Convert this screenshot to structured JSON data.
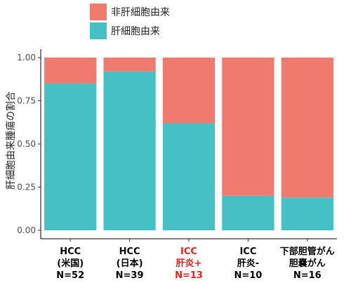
{
  "chart_data": {
    "type": "bar",
    "stacked": true,
    "ylabel": "肝細胞由来腫瘍の割合",
    "xlabel": "",
    "ylim": [
      0,
      1
    ],
    "yticks": [
      "0.00",
      "0.25",
      "0.50",
      "0.75",
      "1.00"
    ],
    "ytick_values": [
      0,
      0.25,
      0.5,
      0.75,
      1.0
    ],
    "grid": false,
    "legend_position": "top",
    "categories": [
      {
        "lines": [
          "HCC",
          "(米国)",
          "N=52"
        ],
        "color": "#000000"
      },
      {
        "lines": [
          "HCC",
          "(日本)",
          "N=39"
        ],
        "color": "#000000"
      },
      {
        "lines": [
          "ICC",
          "肝炎+",
          "N=13"
        ],
        "color": "#e8211c"
      },
      {
        "lines": [
          "ICC",
          "肝炎-",
          "N=10"
        ],
        "color": "#000000"
      },
      {
        "lines": [
          "下部胆管がん",
          "胆嚢がん",
          "N=16"
        ],
        "color": "#000000"
      }
    ],
    "series": [
      {
        "name": "肝細胞由来",
        "color": "#45c1c5",
        "values": [
          0.85,
          0.92,
          0.62,
          0.2,
          0.19
        ]
      },
      {
        "name": "非肝細胞由来",
        "color": "#f07a6e",
        "values": [
          0.15,
          0.08,
          0.38,
          0.8,
          0.81
        ]
      }
    ],
    "legend_order": [
      1,
      0
    ]
  }
}
